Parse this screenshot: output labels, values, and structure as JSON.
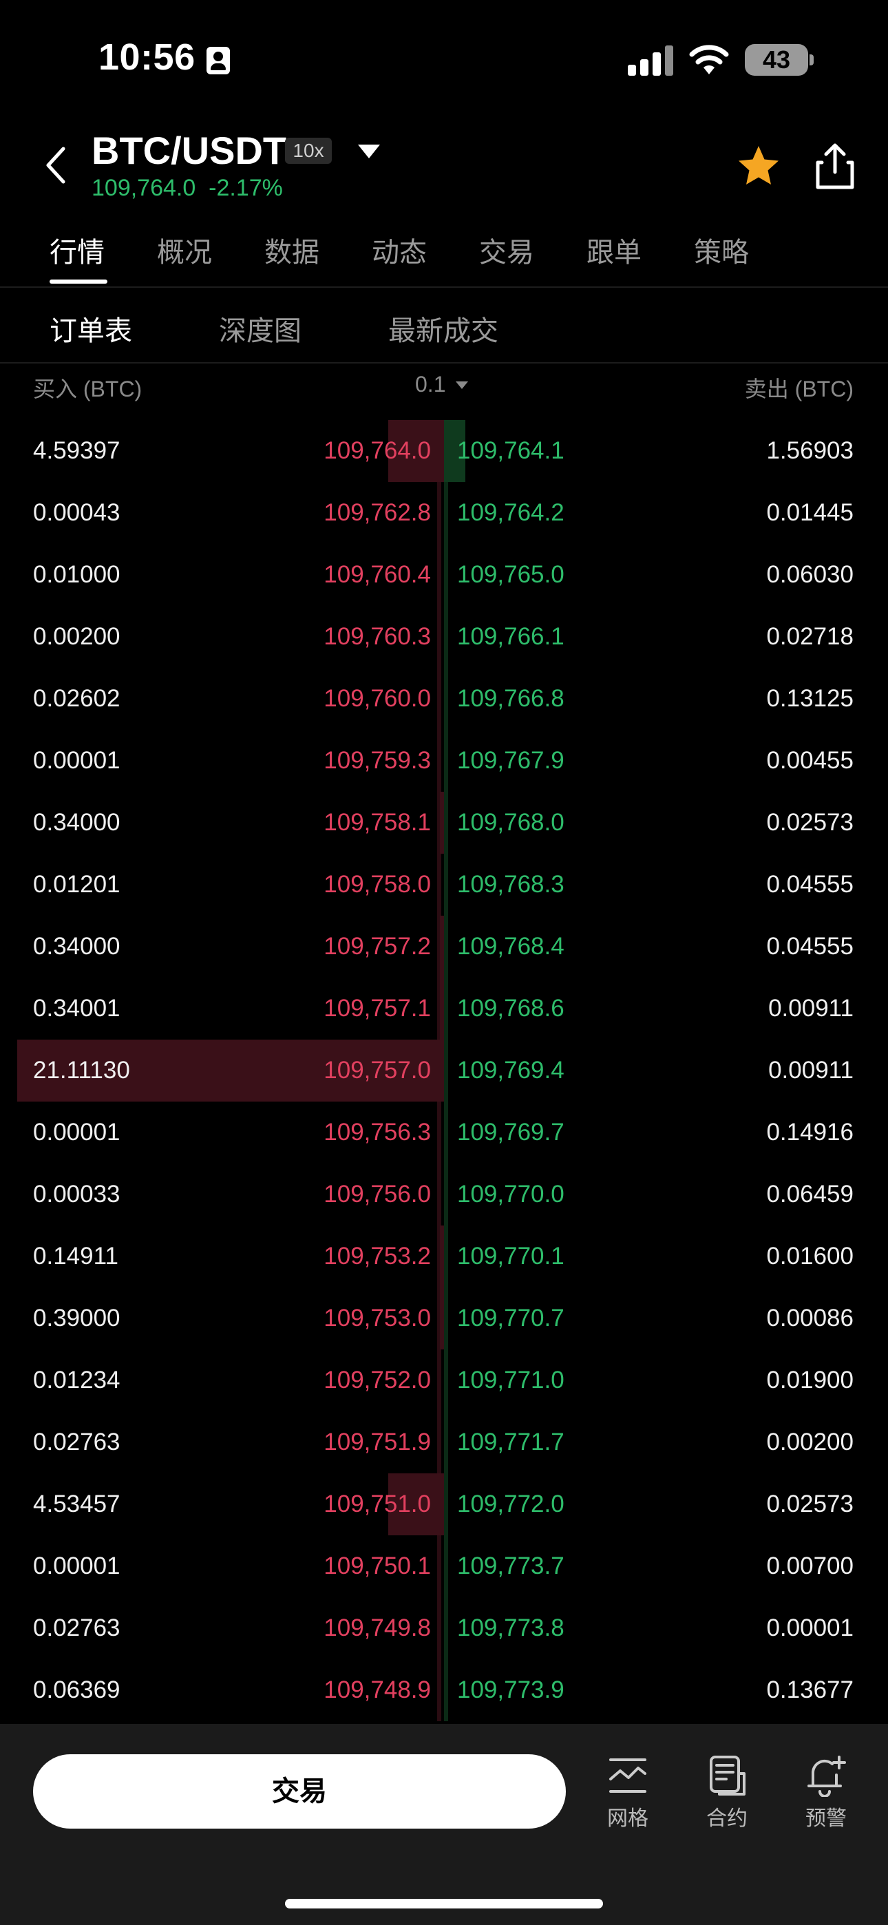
{
  "status_bar": {
    "time": "10:56",
    "battery": "43"
  },
  "header": {
    "pair": "BTC/USDT",
    "leverage": "10x",
    "last_price": "109,764.0",
    "change_pct": "-2.17%"
  },
  "tabs": [
    "行情",
    "概况",
    "数据",
    "动态",
    "交易",
    "跟单",
    "策略"
  ],
  "subtabs": [
    "订单表",
    "深度图",
    "最新成交"
  ],
  "book_header": {
    "bid_label": "买入 (BTC)",
    "precision": "0.1",
    "ask_label": "卖出 (BTC)"
  },
  "book": [
    {
      "bid_qty": "4.59397",
      "bid_price": "109,764.0",
      "ask_price": "109,764.1",
      "ask_qty": "1.56903",
      "bid_depth": 0.13,
      "ask_depth": 0.05
    },
    {
      "bid_qty": "0.00043",
      "bid_price": "109,762.8",
      "ask_price": "109,764.2",
      "ask_qty": "0.01445",
      "bid_depth": 0,
      "ask_depth": 0
    },
    {
      "bid_qty": "0.01000",
      "bid_price": "109,760.4",
      "ask_price": "109,765.0",
      "ask_qty": "0.06030",
      "bid_depth": 0,
      "ask_depth": 0
    },
    {
      "bid_qty": "0.00200",
      "bid_price": "109,760.3",
      "ask_price": "109,766.1",
      "ask_qty": "0.02718",
      "bid_depth": 0,
      "ask_depth": 0
    },
    {
      "bid_qty": "0.02602",
      "bid_price": "109,760.0",
      "ask_price": "109,766.8",
      "ask_qty": "0.13125",
      "bid_depth": 0,
      "ask_depth": 0
    },
    {
      "bid_qty": "0.00001",
      "bid_price": "109,759.3",
      "ask_price": "109,767.9",
      "ask_qty": "0.00455",
      "bid_depth": 0,
      "ask_depth": 0
    },
    {
      "bid_qty": "0.34000",
      "bid_price": "109,758.1",
      "ask_price": "109,768.0",
      "ask_qty": "0.02573",
      "bid_depth": 0.01,
      "ask_depth": 0
    },
    {
      "bid_qty": "0.01201",
      "bid_price": "109,758.0",
      "ask_price": "109,768.3",
      "ask_qty": "0.04555",
      "bid_depth": 0,
      "ask_depth": 0
    },
    {
      "bid_qty": "0.34000",
      "bid_price": "109,757.2",
      "ask_price": "109,768.4",
      "ask_qty": "0.04555",
      "bid_depth": 0.01,
      "ask_depth": 0
    },
    {
      "bid_qty": "0.34001",
      "bid_price": "109,757.1",
      "ask_price": "109,768.6",
      "ask_qty": "0.00911",
      "bid_depth": 0.01,
      "ask_depth": 0
    },
    {
      "bid_qty": "21.11130",
      "bid_price": "109,757.0",
      "ask_price": "109,769.4",
      "ask_qty": "0.00911",
      "bid_depth": 1.0,
      "ask_depth": 0
    },
    {
      "bid_qty": "0.00001",
      "bid_price": "109,756.3",
      "ask_price": "109,769.7",
      "ask_qty": "0.14916",
      "bid_depth": 0,
      "ask_depth": 0
    },
    {
      "bid_qty": "0.00033",
      "bid_price": "109,756.0",
      "ask_price": "109,770.0",
      "ask_qty": "0.06459",
      "bid_depth": 0,
      "ask_depth": 0
    },
    {
      "bid_qty": "0.14911",
      "bid_price": "109,753.2",
      "ask_price": "109,770.1",
      "ask_qty": "0.01600",
      "bid_depth": 0.01,
      "ask_depth": 0
    },
    {
      "bid_qty": "0.39000",
      "bid_price": "109,753.0",
      "ask_price": "109,770.7",
      "ask_qty": "0.00086",
      "bid_depth": 0.01,
      "ask_depth": 0
    },
    {
      "bid_qty": "0.01234",
      "bid_price": "109,752.0",
      "ask_price": "109,771.0",
      "ask_qty": "0.01900",
      "bid_depth": 0,
      "ask_depth": 0
    },
    {
      "bid_qty": "0.02763",
      "bid_price": "109,751.9",
      "ask_price": "109,771.7",
      "ask_qty": "0.00200",
      "bid_depth": 0,
      "ask_depth": 0
    },
    {
      "bid_qty": "4.53457",
      "bid_price": "109,751.0",
      "ask_price": "109,772.0",
      "ask_qty": "0.02573",
      "bid_depth": 0.13,
      "ask_depth": 0
    },
    {
      "bid_qty": "0.00001",
      "bid_price": "109,750.1",
      "ask_price": "109,773.7",
      "ask_qty": "0.00700",
      "bid_depth": 0,
      "ask_depth": 0
    },
    {
      "bid_qty": "0.02763",
      "bid_price": "109,749.8",
      "ask_price": "109,773.8",
      "ask_qty": "0.00001",
      "bid_depth": 0,
      "ask_depth": 0
    },
    {
      "bid_qty": "0.06369",
      "bid_price": "109,748.9",
      "ask_price": "109,773.9",
      "ask_qty": "0.13677",
      "bid_depth": 0,
      "ask_depth": 0
    }
  ],
  "bottom": {
    "trade_label": "交易",
    "nav": [
      {
        "label": "网格",
        "icon": "grid-chart-icon"
      },
      {
        "label": "合约",
        "icon": "contract-icon"
      },
      {
        "label": "预警",
        "icon": "alert-bell-icon"
      }
    ]
  },
  "colors": {
    "bid": "#e2405f",
    "ask": "#2ebd6b",
    "star": "#f5a623",
    "background": "#000000"
  }
}
